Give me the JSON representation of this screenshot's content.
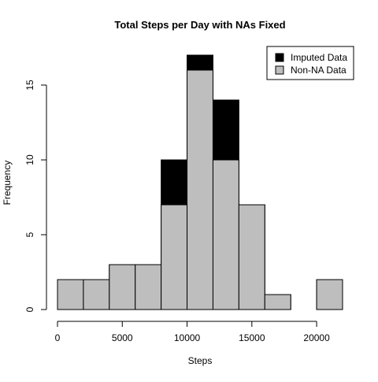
{
  "chart_data": {
    "type": "bar",
    "title": "Total Steps per Day with NAs Fixed",
    "xlabel": "Steps",
    "ylabel": "Frequency",
    "xlim": [
      0,
      22000
    ],
    "ylim": [
      0,
      17
    ],
    "x_ticks": [
      0,
      5000,
      10000,
      15000,
      20000
    ],
    "y_ticks": [
      0,
      5,
      10,
      15
    ],
    "bins": [
      {
        "from": 0,
        "to": 2000
      },
      {
        "from": 2000,
        "to": 4000
      },
      {
        "from": 4000,
        "to": 6000
      },
      {
        "from": 6000,
        "to": 8000
      },
      {
        "from": 8000,
        "to": 10000
      },
      {
        "from": 10000,
        "to": 12000
      },
      {
        "from": 12000,
        "to": 14000
      },
      {
        "from": 14000,
        "to": 16000
      },
      {
        "from": 16000,
        "to": 18000
      },
      {
        "from": 18000,
        "to": 20000
      },
      {
        "from": 20000,
        "to": 22000
      }
    ],
    "series": [
      {
        "name": "Imputed Data",
        "color": "#000000",
        "values": [
          2,
          2,
          3,
          3,
          10,
          17,
          14,
          7,
          1,
          0,
          2
        ]
      },
      {
        "name": "Non-NA Data",
        "color": "#bebebe",
        "values": [
          2,
          2,
          3,
          3,
          7,
          16,
          10,
          7,
          1,
          0,
          2
        ]
      }
    ],
    "legend": {
      "position": "top-right",
      "items": [
        {
          "label": "Imputed Data",
          "color": "#000000"
        },
        {
          "label": "Non-NA Data",
          "color": "#bebebe"
        }
      ]
    },
    "grid": false
  }
}
